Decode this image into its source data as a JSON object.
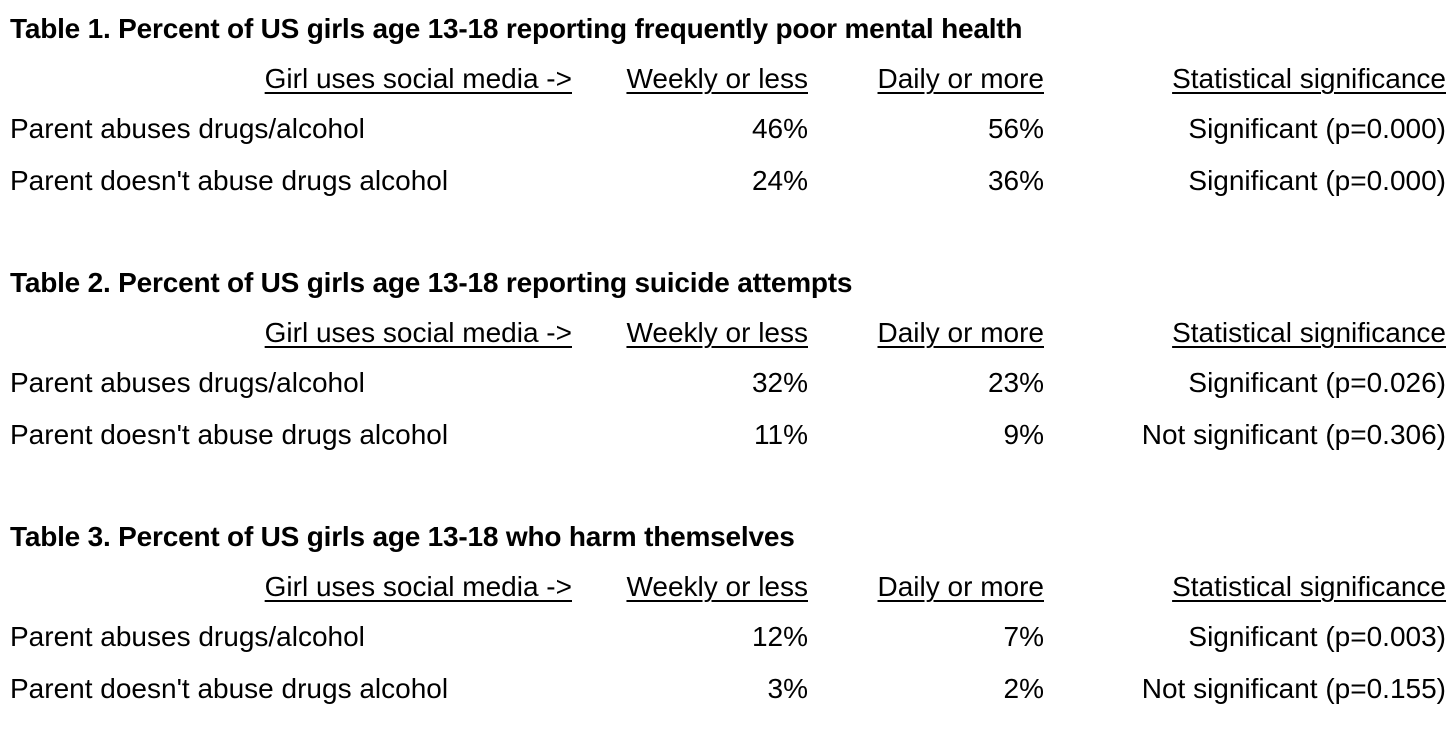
{
  "tables": [
    {
      "title": "Table 1. Percent of US girls age 13-18 reporting frequently poor mental health",
      "headers": {
        "label": "Girl uses social media ->",
        "weekly": "Weekly or less",
        "daily": "Daily or more",
        "significance": "Statistical significance"
      },
      "rows": [
        {
          "label": "Parent abuses drugs/alcohol",
          "weekly": "46%",
          "daily": "56%",
          "significance": "Significant (p=0.000)"
        },
        {
          "label": "Parent doesn't abuse drugs alcohol",
          "weekly": "24%",
          "daily": "36%",
          "significance": "Significant (p=0.000)"
        }
      ]
    },
    {
      "title": "Table 2. Percent of US girls age 13-18 reporting suicide attempts",
      "headers": {
        "label": "Girl uses social media ->",
        "weekly": "Weekly or less",
        "daily": "Daily or more",
        "significance": "Statistical significance"
      },
      "rows": [
        {
          "label": "Parent abuses drugs/alcohol",
          "weekly": "32%",
          "daily": "23%",
          "significance": "Significant (p=0.026)"
        },
        {
          "label": "Parent doesn't abuse drugs alcohol",
          "weekly": "11%",
          "daily": "9%",
          "significance": "Not significant (p=0.306)"
        }
      ]
    },
    {
      "title": "Table 3. Percent of US girls age 13-18 who harm themselves",
      "headers": {
        "label": "Girl uses social media ->",
        "weekly": "Weekly or less",
        "daily": "Daily or more",
        "significance": "Statistical significance"
      },
      "rows": [
        {
          "label": "Parent abuses drugs/alcohol",
          "weekly": "12%",
          "daily": "7%",
          "significance": "Significant (p=0.003)"
        },
        {
          "label": "Parent doesn't abuse drugs alcohol",
          "weekly": "3%",
          "daily": "2%",
          "significance": "Not significant (p=0.155)"
        }
      ]
    }
  ]
}
